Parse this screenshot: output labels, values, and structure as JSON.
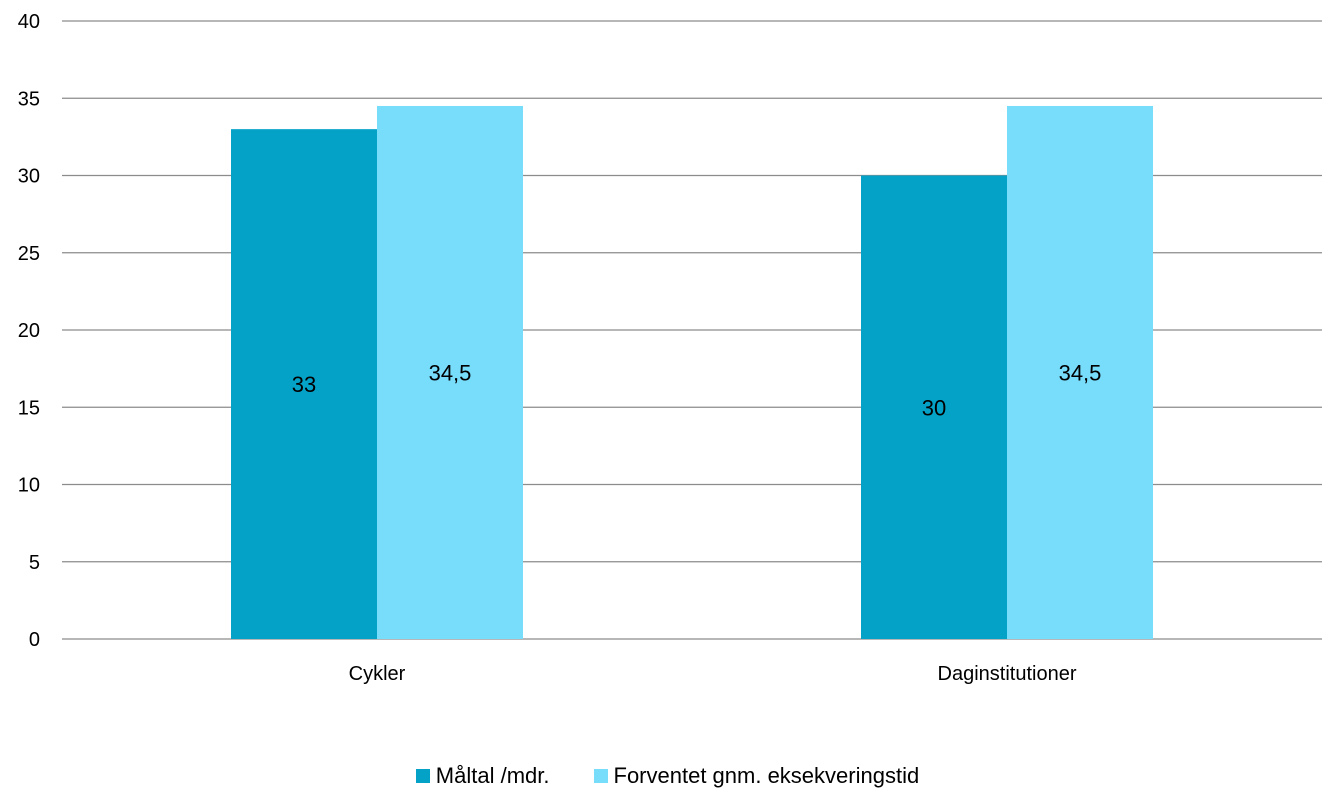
{
  "chart_data": {
    "type": "bar",
    "categories": [
      "Cykler",
      "Daginstitutioner"
    ],
    "series": [
      {
        "name": "Måltal /mdr.",
        "values": [
          33,
          30
        ],
        "labels": [
          "33",
          "30"
        ],
        "color": "#05a2c8"
      },
      {
        "name": "Forventet gnm. eksekveringstid",
        "values": [
          34.5,
          34.5
        ],
        "labels": [
          "34,5",
          "34,5"
        ],
        "color": "#78dcfb"
      }
    ],
    "ylim": [
      0,
      40
    ],
    "yticks": [
      0,
      5,
      10,
      15,
      20,
      25,
      30,
      35,
      40
    ],
    "grid": true,
    "gridline_color": "#8c8c8c",
    "legend_position": "bottom"
  }
}
